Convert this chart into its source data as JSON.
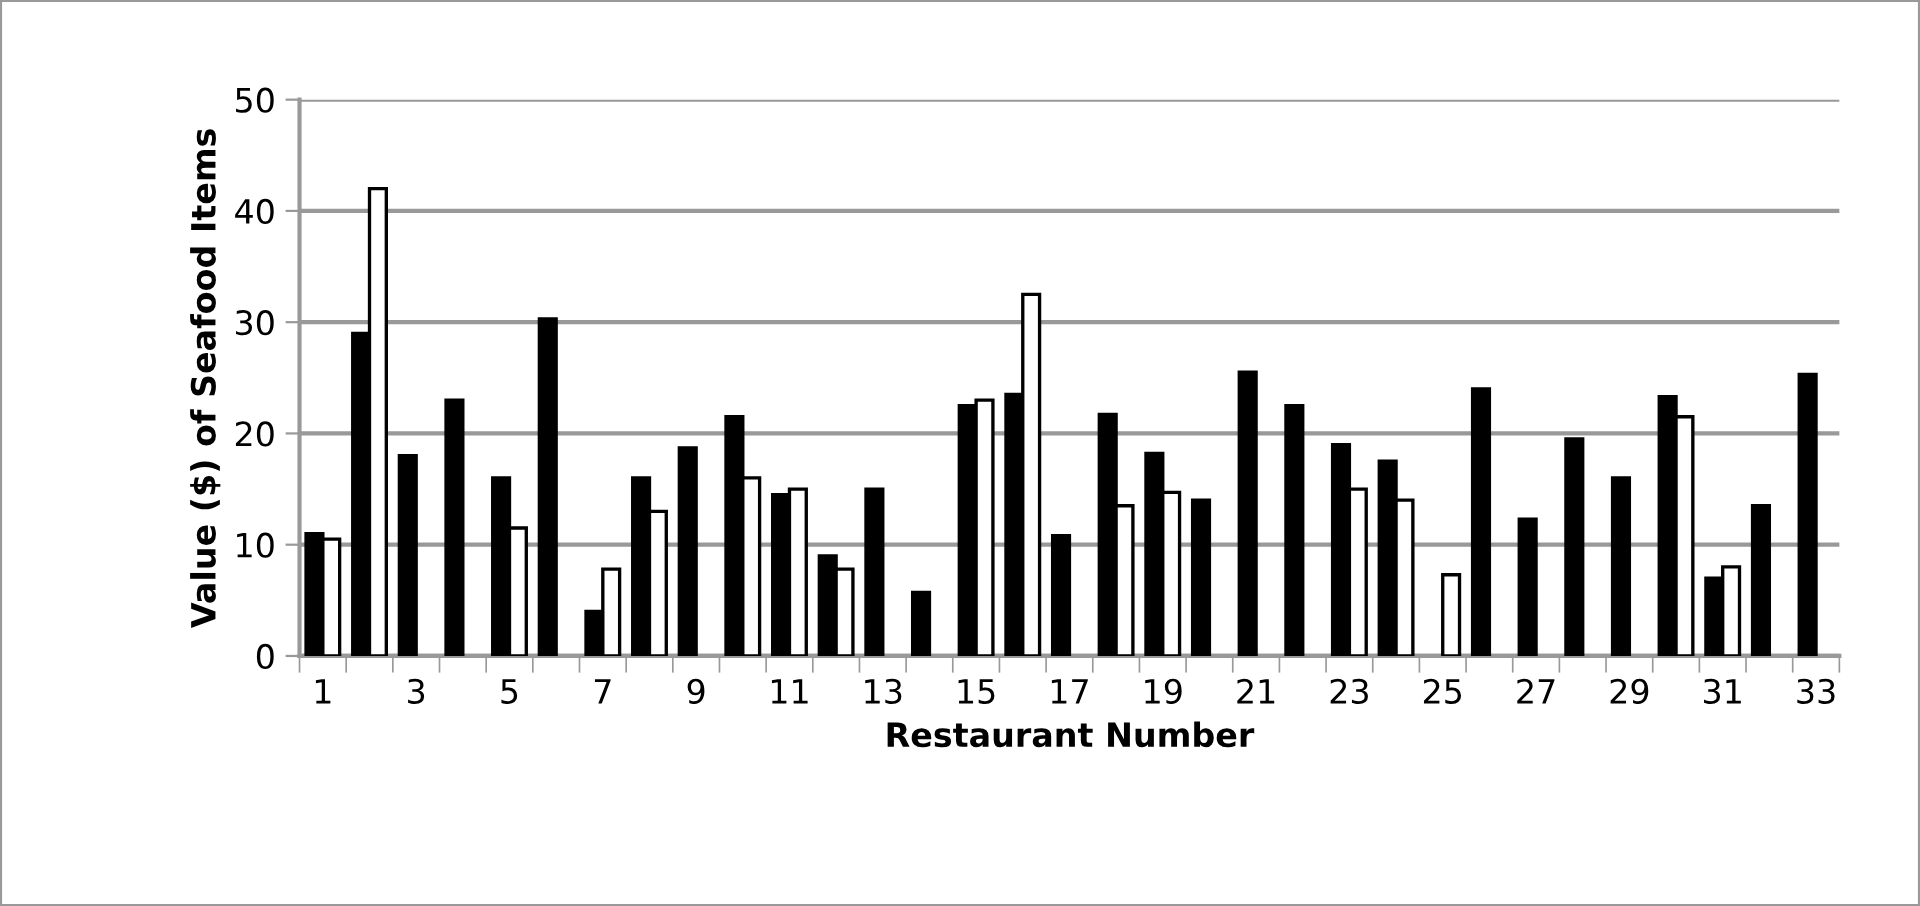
{
  "chart_data": {
    "type": "bar",
    "xlabel": "Restaurant Number",
    "ylabel": "Value ($) of Seafood Items",
    "categories": [
      "1",
      null,
      "3",
      null,
      "5",
      null,
      "7",
      null,
      "9",
      null,
      "11",
      null,
      "13",
      null,
      "15",
      null,
      "17",
      null,
      "19",
      null,
      "21",
      null,
      "23",
      null,
      "25",
      null,
      "27",
      null,
      "29",
      null,
      "31",
      null,
      "33"
    ],
    "series": [
      {
        "color": "#000000",
        "values": [
          11,
          29,
          18,
          23,
          16,
          30.3,
          4,
          16,
          18.7,
          21.5,
          14.5,
          9,
          15,
          5.7,
          22.5,
          23.5,
          10.8,
          21.7,
          18.2,
          14,
          25.5,
          22.5,
          19,
          17.5,
          null,
          24,
          12.3,
          19.5,
          16,
          23.3,
          7,
          13.5,
          25.3
        ]
      },
      {
        "color": "#ffffff",
        "values": [
          10.5,
          42,
          null,
          null,
          11.5,
          null,
          7.8,
          13,
          null,
          16,
          15,
          7.8,
          null,
          null,
          23,
          32.5,
          null,
          13.5,
          14.7,
          null,
          null,
          null,
          15,
          14,
          7.3,
          null,
          null,
          null,
          null,
          21.5,
          8,
          null,
          null
        ]
      }
    ],
    "ylim": [
      0,
      50
    ],
    "yticks": [
      0,
      10,
      20,
      30,
      40,
      50
    ],
    "grid": "y",
    "legend": false
  }
}
